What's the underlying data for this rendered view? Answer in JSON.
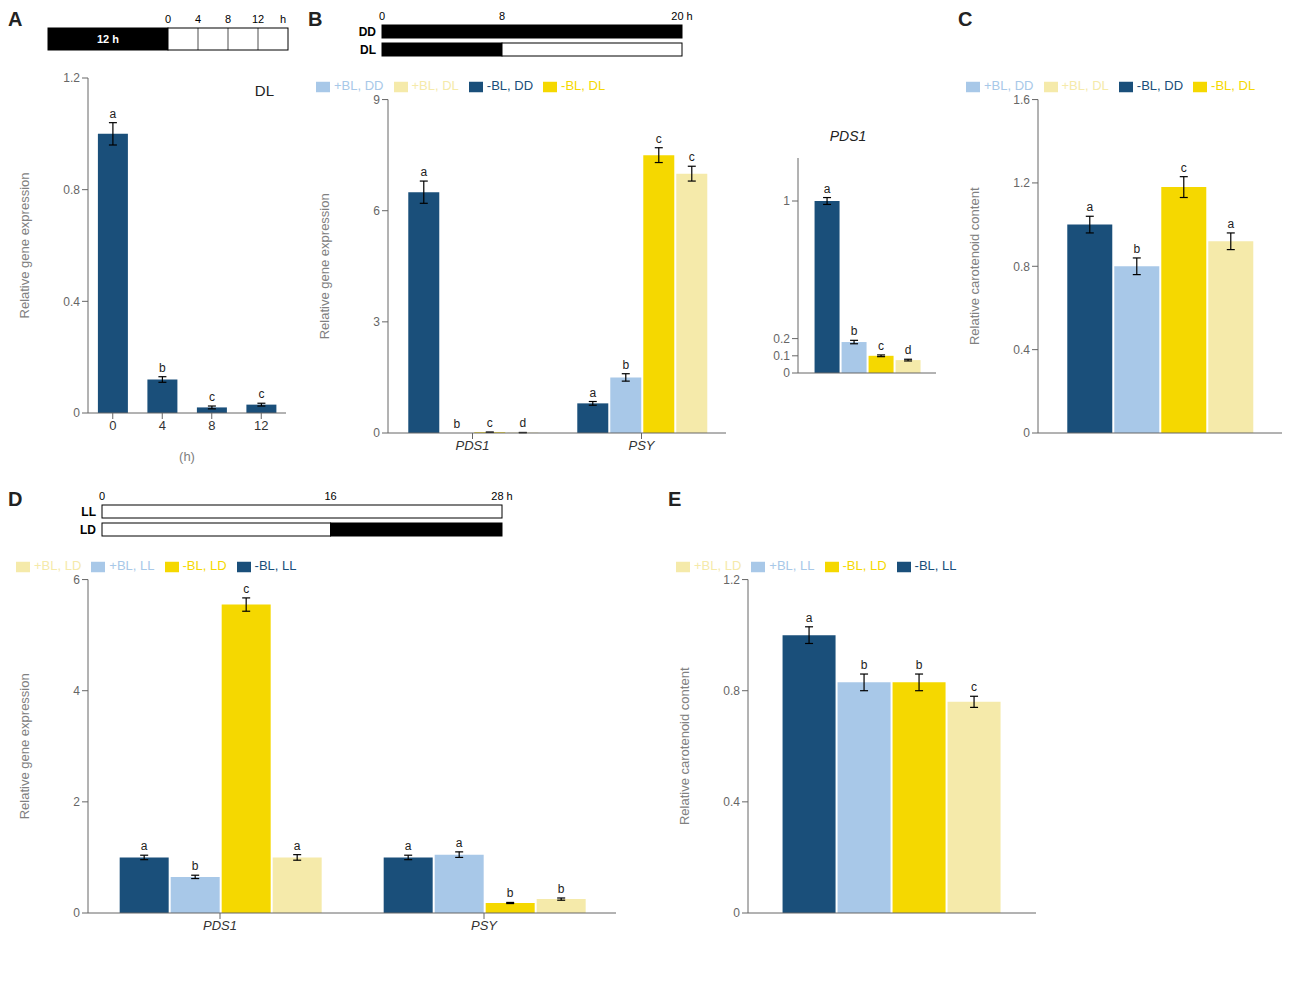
{
  "chart_data": [
    {
      "type": "bar",
      "title": "A",
      "categories": [
        "0",
        "4",
        "8",
        "12"
      ],
      "xlabel": "(h)",
      "ylabel": "Relative gene expression",
      "values": [
        1.0,
        0.12,
        0.02,
        0.03
      ],
      "errors": [
        0.04,
        0.01,
        0.005,
        0.005
      ],
      "labels": [
        "a",
        "b",
        "c",
        "c"
      ],
      "color": "#1a4f7a",
      "ylim": [
        0,
        1.2
      ],
      "yticks": [
        0,
        0.4,
        0.8,
        1.2
      ],
      "grid": false,
      "annotations": [
        "DL",
        "12 h",
        "0",
        "4",
        "8",
        "12",
        "h"
      ]
    },
    {
      "type": "bar",
      "title": "B",
      "categories": [
        "PDS1",
        "PSY"
      ],
      "ylabel": "Relative gene expression",
      "series": [
        {
          "name": "-BL, DD",
          "color": "#1a4f7a",
          "values": [
            6.5,
            0.8
          ],
          "errors": [
            0.3,
            0.05
          ],
          "labels": [
            "a",
            "a"
          ]
        },
        {
          "name": "+BL, DD",
          "color": "#a8c8e8",
          "values": [
            0.0,
            1.5
          ],
          "errors": [
            0.005,
            0.1
          ],
          "labels": [
            "b",
            "b"
          ]
        },
        {
          "name": "-BL, DL",
          "color": "#f5d800",
          "values": [
            0.02,
            7.5
          ],
          "errors": [
            0.005,
            0.2
          ],
          "labels": [
            "c",
            "c"
          ]
        },
        {
          "name": "+BL, DL",
          "color": "#f5eaaa",
          "values": [
            0.01,
            7.0
          ],
          "errors": [
            0.005,
            0.2
          ],
          "labels": [
            "d",
            "c"
          ]
        }
      ],
      "ylim": [
        0,
        9
      ],
      "yticks": [
        0,
        3,
        6,
        9
      ],
      "grid": false,
      "legend": "top",
      "annotations": [
        "DD",
        "DL",
        "0",
        "8",
        "20 h"
      ]
    },
    {
      "type": "bar",
      "title": "PDS1",
      "categories": [
        null
      ],
      "series": [
        {
          "color": "#1a4f7a",
          "values": [
            1.0
          ],
          "errors": [
            0.02
          ],
          "labels": [
            "a"
          ]
        },
        {
          "color": "#a8c8e8",
          "values": [
            0.18
          ],
          "errors": [
            0.01
          ],
          "labels": [
            "b"
          ]
        },
        {
          "color": "#f5d800",
          "values": [
            0.1
          ],
          "errors": [
            0.005
          ],
          "labels": [
            "c"
          ]
        },
        {
          "color": "#f5eaaa",
          "values": [
            0.075
          ],
          "errors": [
            0.005
          ],
          "labels": [
            "d"
          ]
        }
      ],
      "ylim": [
        0,
        1.25
      ],
      "yticks": [
        0,
        0.1,
        0.2,
        1
      ],
      "grid": false,
      "tick_labels": "y"
    },
    {
      "type": "bar",
      "title": "C",
      "categories": [
        null
      ],
      "ylabel": "Relative carotenoid content",
      "series": [
        {
          "name": "-BL, DD",
          "color": "#1a4f7a",
          "values": [
            1.0
          ],
          "errors": [
            0.04
          ],
          "labels": [
            "a"
          ]
        },
        {
          "name": "+BL, DD",
          "color": "#a8c8e8",
          "values": [
            0.8
          ],
          "errors": [
            0.04
          ],
          "labels": [
            "b"
          ]
        },
        {
          "name": "-BL, DL",
          "color": "#f5d800",
          "values": [
            1.18
          ],
          "errors": [
            0.05
          ],
          "labels": [
            "c"
          ]
        },
        {
          "name": "+BL, DL",
          "color": "#f5eaaa",
          "values": [
            0.92
          ],
          "errors": [
            0.04
          ],
          "labels": [
            "a"
          ]
        }
      ],
      "ylim": [
        0,
        1.6
      ],
      "yticks": [
        0,
        0.4,
        0.8,
        1.2,
        1.6
      ],
      "grid": false,
      "legend": "top",
      "tick_labels": "y"
    },
    {
      "type": "bar",
      "title": "D",
      "categories": [
        "PDS1",
        "PSY"
      ],
      "ylabel": "Relative gene expression",
      "series": [
        {
          "name": "-BL, LL",
          "color": "#1a4f7a",
          "values": [
            1.0,
            1.0
          ],
          "errors": [
            0.04,
            0.04
          ],
          "labels": [
            "a",
            "a"
          ]
        },
        {
          "name": "+BL, LL",
          "color": "#a8c8e8",
          "values": [
            0.65,
            1.05
          ],
          "errors": [
            0.03,
            0.05
          ],
          "labels": [
            "b",
            "a"
          ]
        },
        {
          "name": "-BL, LD",
          "color": "#f5d800",
          "values": [
            5.55,
            0.18
          ],
          "errors": [
            0.12,
            0.01
          ],
          "labels": [
            "c",
            "b"
          ]
        },
        {
          "name": "+BL, LD",
          "color": "#f5eaaa",
          "values": [
            1.0,
            0.25
          ],
          "errors": [
            0.05,
            0.02
          ],
          "labels": [
            "a",
            "b"
          ]
        }
      ],
      "ylim": [
        0,
        6
      ],
      "yticks": [
        0,
        2,
        4,
        6
      ],
      "grid": false,
      "legend": "top",
      "annotations": [
        "LL",
        "LD",
        "0",
        "16",
        "28 h"
      ]
    },
    {
      "type": "bar",
      "title": "E",
      "categories": [
        null
      ],
      "ylabel": "Relative carotenoid content",
      "series": [
        {
          "name": "-BL, LL",
          "color": "#1a4f7a",
          "values": [
            1.0
          ],
          "errors": [
            0.03
          ],
          "labels": [
            "a"
          ]
        },
        {
          "name": "+BL, LL",
          "color": "#a8c8e8",
          "values": [
            0.83
          ],
          "errors": [
            0.03
          ],
          "labels": [
            "b"
          ]
        },
        {
          "name": "-BL, LD",
          "color": "#f5d800",
          "values": [
            0.83
          ],
          "errors": [
            0.03
          ],
          "labels": [
            "b"
          ]
        },
        {
          "name": "+BL, LD",
          "color": "#f5eaaa",
          "values": [
            0.76
          ],
          "errors": [
            0.02
          ],
          "labels": [
            "c"
          ]
        }
      ],
      "ylim": [
        0,
        1.2
      ],
      "yticks": [
        0,
        0.4,
        0.8,
        1.2
      ],
      "grid": false,
      "legend": "top",
      "tick_labels": "y"
    }
  ]
}
